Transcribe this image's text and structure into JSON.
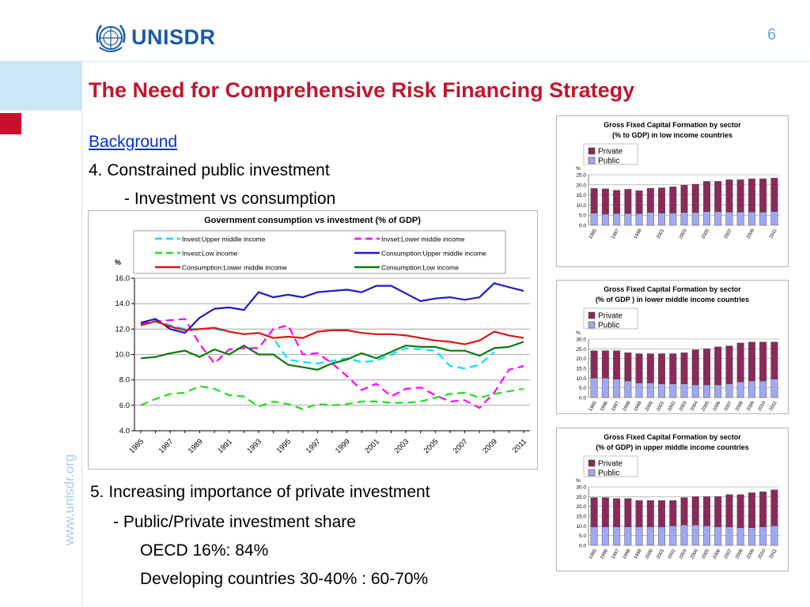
{
  "header": {
    "logo_text": "UNISDR",
    "page_number": "6"
  },
  "sidebar": {
    "url_text": "www.unisdr.org"
  },
  "slide": {
    "title": "The Need for Comprehensive Risk Financing Strategy",
    "background_link": "Background",
    "point4": "4.  Constrained public investment",
    "point4_sub": "- Investment vs consumption",
    "point5": "5. Increasing importance of private investment",
    "point5_sub": "- Public/Private investment share",
    "oecd": "OECD  16%: 84%",
    "developing": "Developing countries 30-40% : 60-70%"
  },
  "colors": {
    "title": "#c0172e",
    "logo": "#1a5ba6",
    "link": "#0033cc",
    "private": "#8b2a5a",
    "public": "#9fa8f0"
  },
  "chart_data": [
    {
      "type": "line",
      "title": "Government consumption vs investment (% of GDP)",
      "ylabel": "%",
      "ylim": [
        4,
        16
      ],
      "yticks": [
        "16.0",
        "14.0",
        "12.0",
        "10.0",
        "8.0",
        "6.0",
        "4.0"
      ],
      "xtick_labels": [
        "1985",
        "1987",
        "1989",
        "1991",
        "1993",
        "1995",
        "1997",
        "1999",
        "2001",
        "2003",
        "2005",
        "2007",
        "2009",
        "2011"
      ],
      "x": [
        1985,
        1986,
        1987,
        1988,
        1989,
        1990,
        1991,
        1992,
        1993,
        1994,
        1995,
        1996,
        1997,
        1998,
        1999,
        2000,
        2001,
        2002,
        2003,
        2004,
        2005,
        2006,
        2007,
        2008,
        2009,
        2010,
        2011
      ],
      "legend": "top",
      "series": [
        {
          "name": "Invest:Upper middle income",
          "color": "#00e0ff",
          "dash": true,
          "values": [
            12.4,
            12.7,
            12.3,
            12.0,
            12.0,
            12.0,
            11.8,
            11.6,
            11.7,
            11.3,
            9.6,
            9.4,
            9.3,
            9.5,
            9.7,
            9.4,
            9.5,
            10.0,
            10.5,
            10.4,
            10.3,
            9.1,
            8.9,
            9.2,
            10.2,
            null,
            null
          ]
        },
        {
          "name": "Invset:Lower middle income",
          "color": "#ff00ff",
          "dash": true,
          "values": [
            12.4,
            12.6,
            12.7,
            12.8,
            10.8,
            9.3,
            10.4,
            10.5,
            10.5,
            12.0,
            12.3,
            10.0,
            10.1,
            9.3,
            8.3,
            7.2,
            7.7,
            6.7,
            7.3,
            7.4,
            6.8,
            6.3,
            6.4,
            5.8,
            7.0,
            8.8,
            9.1
          ]
        },
        {
          "name": "Invest:Low income",
          "color": "#22dd22",
          "dash": true,
          "values": [
            6.0,
            6.5,
            6.9,
            7.0,
            7.5,
            7.3,
            6.8,
            6.7,
            5.9,
            6.3,
            6.1,
            5.7,
            6.1,
            6.0,
            6.1,
            6.3,
            6.3,
            6.2,
            6.2,
            6.3,
            6.6,
            6.9,
            7.0,
            6.6,
            6.9,
            7.1,
            7.3
          ]
        },
        {
          "name": "Consumption:Upper middle income",
          "color": "#1c1cc8",
          "dash": false,
          "values": [
            12.5,
            12.8,
            12.0,
            11.7,
            12.9,
            13.6,
            13.7,
            13.5,
            14.9,
            14.5,
            14.7,
            14.5,
            14.9,
            15.0,
            15.1,
            14.9,
            15.4,
            15.4,
            14.8,
            14.2,
            14.4,
            14.5,
            14.3,
            14.5,
            15.6,
            15.3,
            15.0
          ]
        },
        {
          "name": "Consumption:Lower middle income",
          "color": "#e01414",
          "dash": false,
          "values": [
            12.3,
            12.6,
            12.2,
            11.9,
            12.0,
            12.1,
            11.8,
            11.6,
            11.7,
            11.3,
            11.4,
            11.3,
            11.8,
            11.9,
            11.9,
            11.7,
            11.6,
            11.6,
            11.5,
            11.3,
            11.1,
            11.0,
            10.8,
            11.1,
            11.8,
            11.5,
            11.3
          ]
        },
        {
          "name": "Consumption:Low income",
          "color": "#0c7a0c",
          "dash": false,
          "values": [
            9.7,
            9.8,
            10.1,
            10.3,
            9.8,
            10.4,
            10.0,
            10.7,
            10.0,
            10.0,
            9.2,
            9.0,
            8.8,
            9.3,
            9.6,
            10.1,
            9.7,
            10.2,
            10.7,
            10.6,
            10.6,
            10.3,
            10.3,
            9.9,
            10.5,
            10.6,
            11.0
          ]
        }
      ]
    },
    {
      "type": "bar",
      "title": "Gross Fixed Capital Formation by sector",
      "subtitle": "(% to GDP) in low income countries",
      "ylabel": "%",
      "ylim": [
        0,
        25
      ],
      "yticks": [
        "25.0",
        "20.0",
        "15.0",
        "10.0",
        "5.0",
        "0.0"
      ],
      "categories": [
        "1995",
        "1996",
        "1997",
        "1998",
        "1999",
        "2000",
        "2001",
        "2002",
        "2003",
        "2004",
        "2005",
        "2006",
        "2007",
        "2008",
        "2009",
        "2010",
        "2011"
      ],
      "xtick_labels": [
        "1995",
        "1997",
        "1999",
        "2001",
        "2003",
        "2005",
        "2007",
        "2009",
        "2011"
      ],
      "legend": "top-left",
      "series": [
        {
          "name": "Private",
          "values": [
            12.2,
            12.5,
            11.5,
            12.0,
            11.3,
            12.0,
            12.5,
            13.0,
            13.5,
            14.0,
            15.0,
            15.0,
            16.0,
            16.0,
            16.5,
            16.5,
            16.5
          ]
        },
        {
          "name": "Public",
          "values": [
            6.0,
            5.5,
            5.8,
            5.8,
            5.8,
            6.3,
            6.0,
            6.0,
            6.3,
            6.3,
            6.7,
            6.7,
            6.5,
            6.5,
            6.5,
            6.5,
            6.8
          ]
        }
      ]
    },
    {
      "type": "bar",
      "title": "Gross Fixed Capital Formation by sector",
      "subtitle": "(% of GDP ) in lower middle income countries",
      "ylabel": "%",
      "ylim": [
        0,
        30
      ],
      "yticks": [
        "30.0",
        "25.0",
        "20.0",
        "15.0",
        "10.0",
        "5.0",
        "0.0"
      ],
      "categories": [
        "1995",
        "1996",
        "1997",
        "1998",
        "1999",
        "2000",
        "2001",
        "2002",
        "2003",
        "2004",
        "2005",
        "2006",
        "2007",
        "2008",
        "2009",
        "2010",
        "2011"
      ],
      "xtick_labels": [
        "1995",
        "1996",
        "1997",
        "1998",
        "1999",
        "2000",
        "2001",
        "2002",
        "2003",
        "2004",
        "2005",
        "2006",
        "2007",
        "2008",
        "2009",
        "2010",
        "2011"
      ],
      "legend": "top-left",
      "series": [
        {
          "name": "Private",
          "values": [
            14.0,
            14.0,
            14.5,
            14.5,
            15.0,
            15.0,
            15.5,
            15.5,
            16.0,
            18.0,
            18.5,
            19.5,
            19.5,
            20.0,
            20.0,
            20.0,
            19.0
          ]
        },
        {
          "name": "Public",
          "values": [
            10.0,
            10.0,
            9.5,
            8.5,
            7.5,
            7.5,
            7.0,
            7.0,
            7.0,
            6.5,
            6.5,
            6.5,
            7.0,
            8.0,
            8.5,
            8.5,
            9.5
          ]
        }
      ]
    },
    {
      "type": "bar",
      "title": "Gross Fixed Capital Formation by sector",
      "subtitle": "(% of GDP)    in upper middle income countries",
      "ylabel": "%",
      "ylim": [
        0,
        30
      ],
      "yticks": [
        "30.0",
        "25.0",
        "20.0",
        "15.0",
        "10.0",
        "5.0",
        "0.0"
      ],
      "categories": [
        "1995",
        "1996",
        "1997",
        "1998",
        "1999",
        "2000",
        "2001",
        "2002",
        "2003",
        "2004",
        "2005",
        "2006",
        "2007",
        "2008",
        "2009",
        "2010",
        "2011"
      ],
      "xtick_labels": [
        "1995",
        "1996",
        "1997",
        "1998",
        "1999",
        "2000",
        "2001",
        "2002",
        "2003",
        "2004",
        "2005",
        "2006",
        "2007",
        "2008",
        "2009",
        "2010",
        "2011"
      ],
      "legend": "top-left",
      "series": [
        {
          "name": "Private",
          "values": [
            15.0,
            15.0,
            14.5,
            14.5,
            13.5,
            13.5,
            13.5,
            13.0,
            14.0,
            14.5,
            15.0,
            15.5,
            16.5,
            17.0,
            18.0,
            18.0,
            18.5
          ]
        },
        {
          "name": "Public",
          "values": [
            9.5,
            9.5,
            9.5,
            9.5,
            9.5,
            9.5,
            9.5,
            10.0,
            10.5,
            10.5,
            10.0,
            9.5,
            9.5,
            9.0,
            9.0,
            9.5,
            10.0
          ]
        }
      ]
    }
  ]
}
